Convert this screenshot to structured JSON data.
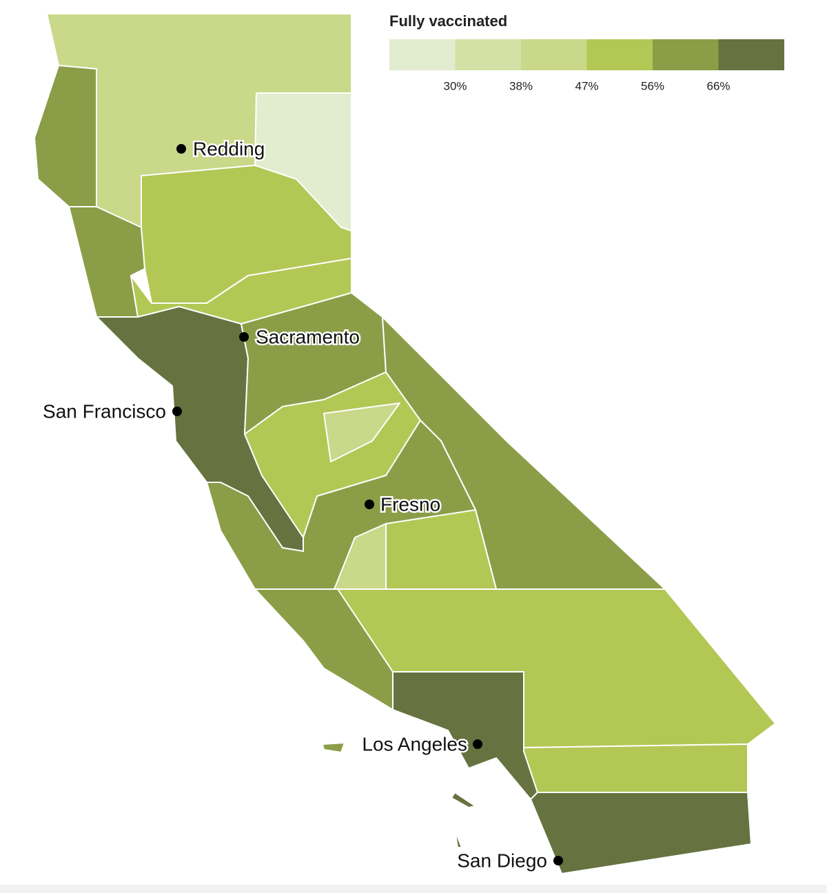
{
  "legend": {
    "title": "Fully vaccinated",
    "colors": [
      "#e2ecce",
      "#d3e1a6",
      "#c9d889",
      "#b3c755",
      "#8c9d48",
      "#667240"
    ],
    "breaks": [
      {
        "value": 30,
        "label": "30%"
      },
      {
        "value": 38,
        "label": "38%"
      },
      {
        "value": 47,
        "label": "47%"
      },
      {
        "value": 56,
        "label": "56%"
      },
      {
        "value": 66,
        "label": "66%"
      }
    ]
  },
  "cities": [
    "Redding",
    "Sacramento",
    "San Francisco",
    "Fresno",
    "Los Angeles",
    "San Diego"
  ]
}
